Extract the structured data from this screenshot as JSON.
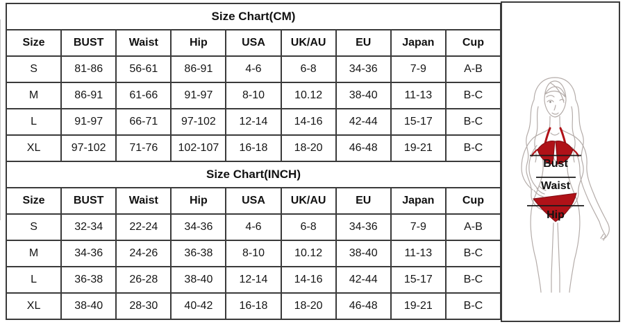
{
  "tables": [
    {
      "title": "Size Chart(CM)",
      "columns": [
        "Size",
        "BUST",
        "Waist",
        "Hip",
        "USA",
        "UK/AU",
        "EU",
        "Japan",
        "Cup"
      ],
      "rows": [
        [
          "S",
          "81-86",
          "56-61",
          "86-91",
          "4-6",
          "6-8",
          "34-36",
          "7-9",
          "A-B"
        ],
        [
          "M",
          "86-91",
          "61-66",
          "91-97",
          "8-10",
          "10.12",
          "38-40",
          "11-13",
          "B-C"
        ],
        [
          "L",
          "91-97",
          "66-71",
          "97-102",
          "12-14",
          "14-16",
          "42-44",
          "15-17",
          "B-C"
        ],
        [
          "XL",
          "97-102",
          "71-76",
          "102-107",
          "16-18",
          "18-20",
          "46-48",
          "19-21",
          "B-C"
        ]
      ]
    },
    {
      "title": "Size Chart(INCH)",
      "columns": [
        "Size",
        "BUST",
        "Waist",
        "Hip",
        "USA",
        "UK/AU",
        "EU",
        "Japan",
        "Cup"
      ],
      "rows": [
        [
          "S",
          "32-34",
          "22-24",
          "34-36",
          "4-6",
          "6-8",
          "34-36",
          "7-9",
          "A-B"
        ],
        [
          "M",
          "34-36",
          "24-26",
          "36-38",
          "8-10",
          "10.12",
          "38-40",
          "11-13",
          "B-C"
        ],
        [
          "L",
          "36-38",
          "26-28",
          "38-40",
          "12-14",
          "14-16",
          "42-44",
          "15-17",
          "B-C"
        ],
        [
          "XL",
          "38-40",
          "28-30",
          "40-42",
          "16-18",
          "18-20",
          "46-48",
          "19-21",
          "B-C"
        ]
      ]
    }
  ],
  "figure": {
    "labels": {
      "bust": "Bust",
      "waist": "Waist",
      "hip": "Hip"
    }
  },
  "colors": {
    "table_border": "#3a3a3a",
    "text": "#151515",
    "bikini_red": "#b01218",
    "line_art": "#b4aca9",
    "measure_line": "#1a1a1a"
  }
}
